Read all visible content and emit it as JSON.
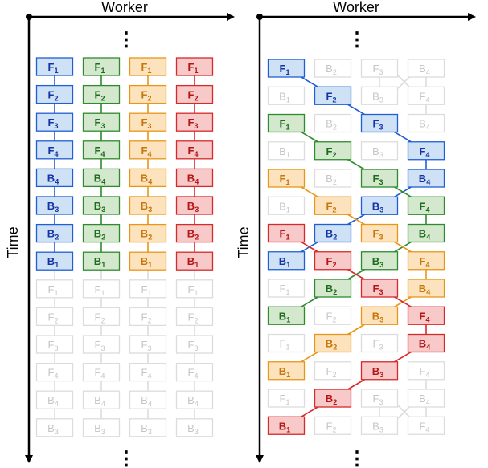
{
  "axis_labels": {
    "x": "Worker",
    "y": "Time"
  },
  "colors": {
    "blue": {
      "fill": "#cfe2f5",
      "stroke": "#1f5fd6",
      "text": "#1433a8"
    },
    "green": {
      "fill": "#d3e8cc",
      "stroke": "#2f8a2f",
      "text": "#1d6b1d"
    },
    "orange": {
      "fill": "#fde3bd",
      "stroke": "#e8961a",
      "text": "#c77608"
    },
    "red": {
      "fill": "#f7c9c9",
      "stroke": "#d62a2a",
      "text": "#b51515"
    },
    "ghost": {
      "fill": "#ffffff",
      "stroke": "#dcdcdc",
      "text": "#c6c6c6"
    }
  },
  "left_panel": {
    "workers": [
      "blue",
      "green",
      "orange",
      "red"
    ],
    "active_steps": [
      "F1",
      "F2",
      "F3",
      "F4",
      "B4",
      "B3",
      "B2",
      "B1"
    ],
    "ghost_steps": [
      "F1",
      "F2",
      "F3",
      "F4",
      "B4",
      "B3"
    ]
  },
  "right_panel": {
    "rows": [
      [
        [
          "F1",
          "blue"
        ],
        [
          "B2",
          "ghost"
        ],
        [
          "F3",
          "ghost"
        ],
        [
          "B4",
          "ghost"
        ]
      ],
      [
        [
          "B1",
          "ghost"
        ],
        [
          "F2",
          "blue"
        ],
        [
          "B3",
          "ghost"
        ],
        [
          "F4",
          "ghost"
        ]
      ],
      [
        [
          "F1",
          "green"
        ],
        [
          "B2",
          "ghost"
        ],
        [
          "F3",
          "blue"
        ],
        [
          "B4",
          "ghost"
        ]
      ],
      [
        [
          "B1",
          "ghost"
        ],
        [
          "F2",
          "green"
        ],
        [
          "B3",
          "ghost"
        ],
        [
          "F4",
          "blue"
        ]
      ],
      [
        [
          "F1",
          "orange"
        ],
        [
          "B2",
          "ghost"
        ],
        [
          "F3",
          "green"
        ],
        [
          "B4",
          "blue"
        ]
      ],
      [
        [
          "B1",
          "ghost"
        ],
        [
          "F2",
          "orange"
        ],
        [
          "B3",
          "blue"
        ],
        [
          "F4",
          "green"
        ]
      ],
      [
        [
          "F1",
          "red"
        ],
        [
          "B2",
          "blue"
        ],
        [
          "F3",
          "orange"
        ],
        [
          "B4",
          "green"
        ]
      ],
      [
        [
          "B1",
          "blue"
        ],
        [
          "F2",
          "red"
        ],
        [
          "B3",
          "green"
        ],
        [
          "F4",
          "orange"
        ]
      ],
      [
        [
          "F1",
          "ghost"
        ],
        [
          "B2",
          "green"
        ],
        [
          "F3",
          "red"
        ],
        [
          "B4",
          "orange"
        ]
      ],
      [
        [
          "B1",
          "green"
        ],
        [
          "F2",
          "ghost"
        ],
        [
          "B3",
          "orange"
        ],
        [
          "F4",
          "red"
        ]
      ],
      [
        [
          "F1",
          "ghost"
        ],
        [
          "B2",
          "orange"
        ],
        [
          "F3",
          "ghost"
        ],
        [
          "B4",
          "red"
        ]
      ],
      [
        [
          "B1",
          "orange"
        ],
        [
          "F2",
          "ghost"
        ],
        [
          "B3",
          "red"
        ],
        [
          "F4",
          "ghost"
        ]
      ],
      [
        [
          "F1",
          "ghost"
        ],
        [
          "B2",
          "red"
        ],
        [
          "F3",
          "ghost"
        ],
        [
          "B4",
          "ghost"
        ]
      ],
      [
        [
          "B1",
          "red"
        ],
        [
          "F2",
          "ghost"
        ],
        [
          "B3",
          "ghost"
        ],
        [
          "F4",
          "ghost"
        ]
      ]
    ],
    "ghost_crosses": [
      [
        0,
        3
      ],
      [
        12,
        3
      ]
    ]
  },
  "continuation": "⋮"
}
